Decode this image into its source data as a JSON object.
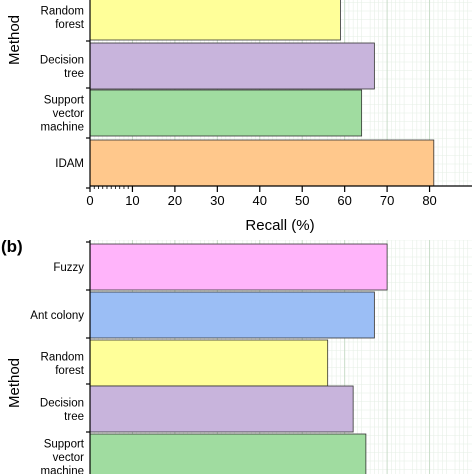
{
  "chart_data": [
    {
      "type": "bar",
      "orientation": "horizontal",
      "panel_label": "",
      "categories": [
        "Random forest",
        "Decision tree",
        "Support vector machine",
        "IDAM"
      ],
      "values": [
        59,
        67,
        64,
        81
      ],
      "colors": [
        "#ffff99",
        "#c8b4dc",
        "#a0dca0",
        "#ffc88c"
      ],
      "xlabel": "Recall (%)",
      "ylabel": "Method",
      "xlim": [
        0,
        90
      ],
      "xticks": [
        "0",
        "10",
        "20",
        "30",
        "40",
        "50",
        "60",
        "70",
        "80"
      ],
      "grid": true
    },
    {
      "type": "bar",
      "orientation": "horizontal",
      "panel_label": "(b)",
      "categories": [
        "Fuzzy",
        "Ant colony",
        "Random forest",
        "Decision tree",
        "Support vector machine"
      ],
      "values": [
        70,
        67,
        56,
        62,
        65
      ],
      "colors": [
        "#ffb4fa",
        "#9bbef5",
        "#ffff99",
        "#c8b4dc",
        "#a0dca0"
      ],
      "ylabel": "Method",
      "xlim": [
        0,
        90
      ],
      "grid": true
    }
  ],
  "category_lines": {
    "Random forest": [
      "Random",
      "forest"
    ],
    "Decision tree": [
      "Decision",
      "tree"
    ],
    "Support vector machine": [
      "Support",
      "vector",
      "machine"
    ],
    "IDAM": [
      "IDAM"
    ],
    "Fuzzy": [
      "Fuzzy"
    ],
    "Ant colony": [
      "Ant colony"
    ]
  }
}
